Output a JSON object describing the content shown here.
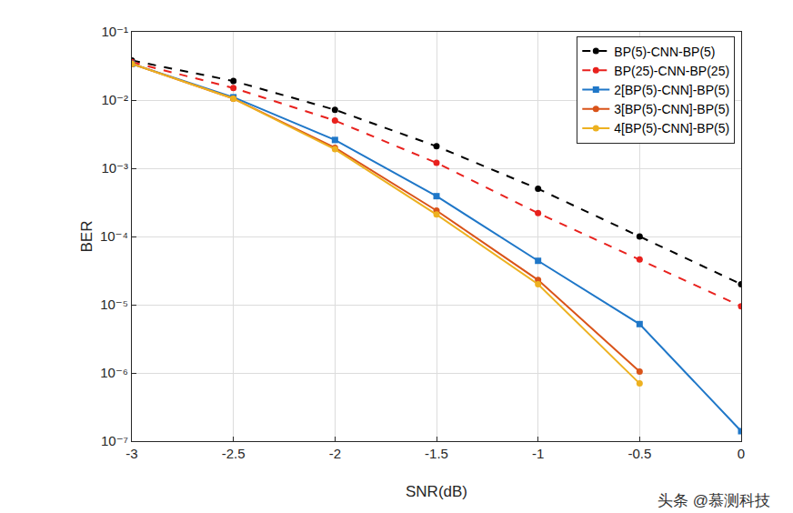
{
  "chart_data": {
    "type": "line",
    "x_label": "SNR(dB)",
    "y_label": "BER",
    "x": [
      -3,
      -2.5,
      -2,
      -1.5,
      -1,
      -0.5,
      0
    ],
    "series": [
      {
        "name": "BP(5)-CNN-BP(5)",
        "color": "#000000",
        "line_style": "dashed",
        "marker": "circle",
        "values": [
          0.038,
          0.019,
          0.0072,
          0.0021,
          0.0005,
          0.0001,
          2e-05
        ]
      },
      {
        "name": "BP(25)-CNN-BP(25)",
        "color": "#e8211d",
        "line_style": "dashed",
        "marker": "circle",
        "values": [
          0.036,
          0.015,
          0.005,
          0.0012,
          0.00022,
          4.6e-05,
          9.5e-06
        ]
      },
      {
        "name": "2[BP(5)-CNN]-BP(5)",
        "color": "#1f77c8",
        "line_style": "solid",
        "marker": "square",
        "values": [
          0.034,
          0.011,
          0.0026,
          0.00039,
          4.4e-05,
          5.2e-06,
          1.4e-07
        ]
      },
      {
        "name": "3[BP(5)-CNN]-BP(5)",
        "color": "#d95319",
        "line_style": "solid",
        "marker": "circle",
        "values": [
          0.034,
          0.0105,
          0.002,
          0.00024,
          2.3e-05,
          1.05e-06,
          null
        ]
      },
      {
        "name": "4[BP(5)-CNN]-BP(5)",
        "color": "#edb120",
        "line_style": "solid",
        "marker": "circle",
        "values": [
          0.034,
          0.0105,
          0.0019,
          0.00021,
          2e-05,
          7e-07,
          null
        ]
      }
    ],
    "xlim": [
      -3,
      0
    ],
    "xticks": [
      -3,
      -2.5,
      -2,
      -1.5,
      -1,
      -0.5,
      0
    ],
    "ylim": [
      1e-07,
      0.1
    ],
    "yticks": [
      {
        "value": 1e-07,
        "label": "10⁻⁷"
      },
      {
        "value": 1e-06,
        "label": "10⁻⁶"
      },
      {
        "value": 1e-05,
        "label": "10⁻⁵"
      },
      {
        "value": 0.0001,
        "label": "10⁻⁴"
      },
      {
        "value": 0.001,
        "label": "10⁻³"
      },
      {
        "value": 0.01,
        "label": "10⁻²"
      },
      {
        "value": 0.1,
        "label": "10⁻¹"
      }
    ],
    "log": "y",
    "grid": true,
    "legend": "top-right",
    "annotations": [
      "头条 @慕测科技"
    ]
  }
}
